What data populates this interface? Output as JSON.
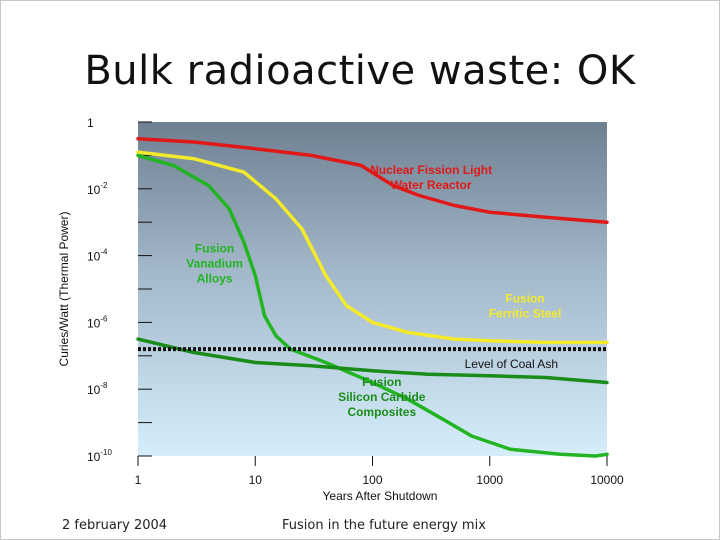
{
  "slide": {
    "title": "Bulk radioactive waste: OK",
    "footer_left": "2 february 2004",
    "footer_center": "Fusion in the future energy mix"
  },
  "chart_data": {
    "type": "line",
    "title": "Bulk radioactive waste: OK",
    "xlabel": "Years After Shutdown",
    "ylabel": "Curies/Watt (Thermal Power)",
    "xscale": "log",
    "yscale": "log",
    "xlim": [
      1,
      10000
    ],
    "ylim": [
      1e-10,
      1
    ],
    "x_ticks": [
      {
        "value": 1,
        "label": "1"
      },
      {
        "value": 10,
        "label": "10"
      },
      {
        "value": 100,
        "label": "100"
      },
      {
        "value": 1000,
        "label": "1000"
      },
      {
        "value": 10000,
        "label": "10000"
      }
    ],
    "y_ticks": [
      {
        "exp": 0,
        "base": "1",
        "sup": ""
      },
      {
        "exp": -2,
        "base": "10",
        "sup": "-2"
      },
      {
        "exp": -4,
        "base": "10",
        "sup": "-4"
      },
      {
        "exp": -6,
        "base": "10",
        "sup": "-6"
      },
      {
        "exp": -8,
        "base": "10",
        "sup": "-8"
      },
      {
        "exp": -10,
        "base": "10",
        "sup": "-10"
      }
    ],
    "reference_line": {
      "label": "Level of Coal Ash",
      "y_exp": -6.8,
      "color": "#111111"
    },
    "series": [
      {
        "name": "Nuclear Fission Light Water Reactor",
        "color": "#e01818",
        "label_lines": [
          "Nuclear Fission Light",
          "Water Reactor"
        ],
        "points": [
          [
            1,
            -0.5
          ],
          [
            3,
            -0.6
          ],
          [
            10,
            -0.8
          ],
          [
            30,
            -1.0
          ],
          [
            80,
            -1.3
          ],
          [
            150,
            -1.9
          ],
          [
            250,
            -2.2
          ],
          [
            500,
            -2.5
          ],
          [
            1000,
            -2.7
          ],
          [
            3000,
            -2.85
          ],
          [
            10000,
            -3.0
          ]
        ]
      },
      {
        "name": "Fusion Ferritic Steel",
        "color": "#f2ea2a",
        "label_lines": [
          "Fusion",
          "Ferritic Steel"
        ],
        "points": [
          [
            1,
            -0.9
          ],
          [
            3,
            -1.1
          ],
          [
            8,
            -1.5
          ],
          [
            15,
            -2.3
          ],
          [
            25,
            -3.2
          ],
          [
            40,
            -4.6
          ],
          [
            60,
            -5.5
          ],
          [
            100,
            -6.0
          ],
          [
            200,
            -6.3
          ],
          [
            500,
            -6.5
          ],
          [
            1000,
            -6.55
          ],
          [
            3000,
            -6.6
          ],
          [
            10000,
            -6.6
          ]
        ]
      },
      {
        "name": "Fusion Vanadium Alloys",
        "color": "#22b422",
        "label_lines": [
          "Fusion",
          "Vanadium",
          "Alloys"
        ],
        "points": [
          [
            1,
            -1.0
          ],
          [
            2,
            -1.3
          ],
          [
            4,
            -1.9
          ],
          [
            6,
            -2.6
          ],
          [
            8,
            -3.6
          ],
          [
            10,
            -4.6
          ],
          [
            12,
            -5.8
          ],
          [
            15,
            -6.4
          ],
          [
            20,
            -6.8
          ],
          [
            40,
            -7.2
          ],
          [
            100,
            -7.8
          ],
          [
            200,
            -8.3
          ],
          [
            400,
            -8.9
          ],
          [
            700,
            -9.4
          ],
          [
            1500,
            -9.8
          ],
          [
            4000,
            -9.95
          ],
          [
            8000,
            -10.0
          ],
          [
            10000,
            -9.95
          ]
        ]
      },
      {
        "name": "Fusion Silicon Carbide Composites",
        "color": "#1a8c1a",
        "label_lines": [
          "Fusion",
          "Silicon Carbide",
          "Composites"
        ],
        "points": [
          [
            1,
            -6.5
          ],
          [
            3,
            -6.9
          ],
          [
            10,
            -7.2
          ],
          [
            30,
            -7.3
          ],
          [
            100,
            -7.45
          ],
          [
            300,
            -7.55
          ],
          [
            1000,
            -7.6
          ],
          [
            3000,
            -7.65
          ],
          [
            10000,
            -7.8
          ]
        ]
      }
    ]
  }
}
